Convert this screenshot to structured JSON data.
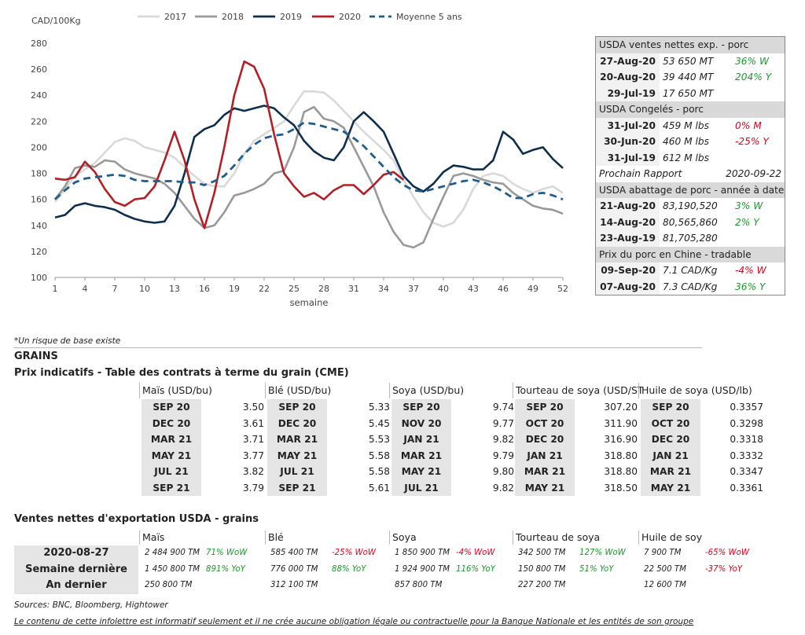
{
  "chart_data": {
    "type": "line",
    "ylabel": "CAD/100Kg",
    "xlabel": "semaine",
    "ylim": [
      100,
      280
    ],
    "xlim": [
      1,
      52
    ],
    "xticks": [
      1,
      4,
      7,
      10,
      13,
      16,
      19,
      22,
      25,
      28,
      31,
      34,
      37,
      40,
      43,
      46,
      49,
      52
    ],
    "yticks": [
      100,
      120,
      140,
      160,
      180,
      200,
      220,
      240,
      260,
      280
    ],
    "legend_position": "top",
    "series": [
      {
        "name": "2017",
        "color": "#d9d9d9",
        "dash": false,
        "x": [
          1,
          2,
          3,
          4,
          5,
          6,
          7,
          8,
          9,
          10,
          11,
          12,
          13,
          14,
          15,
          16,
          17,
          18,
          19,
          20,
          21,
          22,
          23,
          24,
          25,
          26,
          27,
          28,
          29,
          30,
          31,
          32,
          33,
          34,
          35,
          36,
          37,
          38,
          39,
          40,
          41,
          42,
          43,
          44,
          45,
          46,
          47,
          48,
          49,
          50,
          51,
          52
        ],
        "values": [
          158,
          168,
          178,
          183,
          188,
          196,
          204,
          207,
          205,
          200,
          198,
          196,
          192,
          185,
          178,
          172,
          170,
          170,
          180,
          195,
          205,
          210,
          215,
          220,
          232,
          243,
          243,
          242,
          236,
          228,
          220,
          212,
          205,
          198,
          190,
          175,
          162,
          150,
          142,
          139,
          142,
          152,
          168,
          178,
          180,
          178,
          172,
          168,
          165,
          168,
          170,
          165
        ]
      },
      {
        "name": "2018",
        "color": "#999999",
        "dash": false,
        "x": [
          1,
          2,
          3,
          4,
          5,
          6,
          7,
          8,
          9,
          10,
          11,
          12,
          13,
          14,
          15,
          16,
          17,
          18,
          19,
          20,
          21,
          22,
          23,
          24,
          25,
          26,
          27,
          28,
          29,
          30,
          31,
          32,
          33,
          34,
          35,
          36,
          37,
          38,
          39,
          40,
          41,
          42,
          43,
          44,
          45,
          46,
          47,
          48,
          49,
          50,
          51,
          52
        ],
        "values": [
          160,
          170,
          184,
          186,
          185,
          190,
          189,
          183,
          180,
          178,
          176,
          172,
          165,
          155,
          145,
          138,
          140,
          150,
          163,
          165,
          168,
          172,
          180,
          182,
          200,
          227,
          231,
          222,
          220,
          215,
          200,
          185,
          170,
          150,
          135,
          125,
          123,
          127,
          145,
          162,
          178,
          180,
          178,
          175,
          173,
          172,
          165,
          160,
          155,
          153,
          152,
          149
        ]
      },
      {
        "name": "2019",
        "color": "#0e2e4e",
        "dash": false,
        "x": [
          1,
          2,
          3,
          4,
          5,
          6,
          7,
          8,
          9,
          10,
          11,
          12,
          13,
          14,
          15,
          16,
          17,
          18,
          19,
          20,
          21,
          22,
          23,
          24,
          25,
          26,
          27,
          28,
          29,
          30,
          31,
          32,
          33,
          34,
          35,
          36,
          37,
          38,
          39,
          40,
          41,
          42,
          43,
          44,
          45,
          46,
          47,
          48,
          49,
          50,
          51,
          52
        ],
        "values": [
          146,
          148,
          155,
          157,
          155,
          154,
          152,
          148,
          145,
          143,
          142,
          143,
          155,
          180,
          208,
          214,
          217,
          225,
          230,
          228,
          230,
          232,
          230,
          223,
          217,
          205,
          197,
          192,
          190,
          200,
          220,
          227,
          220,
          212,
          195,
          178,
          170,
          166,
          172,
          181,
          186,
          185,
          183,
          183,
          190,
          212,
          206,
          195,
          198,
          200,
          191,
          184
        ]
      },
      {
        "name": "2020",
        "color": "#b22025",
        "dash": false,
        "x": [
          1,
          2,
          3,
          4,
          5,
          6,
          7,
          8,
          9,
          10,
          11,
          12,
          13,
          14,
          15,
          16,
          17,
          18,
          19,
          20,
          21,
          22,
          23,
          24,
          25,
          26,
          27,
          28,
          29,
          30,
          31,
          32,
          33,
          34,
          35,
          36
        ],
        "values": [
          176,
          175,
          177,
          189,
          181,
          168,
          158,
          155,
          160,
          161,
          170,
          190,
          212,
          190,
          160,
          138,
          165,
          200,
          240,
          266,
          262,
          245,
          210,
          180,
          170,
          162,
          165,
          160,
          167,
          171,
          171,
          164,
          171,
          179,
          181,
          175
        ]
      },
      {
        "name": "Moyenne 5 ans",
        "color": "#1f5d8e",
        "dash": true,
        "x": [
          1,
          2,
          3,
          4,
          5,
          6,
          7,
          8,
          9,
          10,
          11,
          12,
          13,
          14,
          15,
          16,
          17,
          18,
          19,
          20,
          21,
          22,
          23,
          24,
          25,
          26,
          27,
          28,
          29,
          30,
          31,
          32,
          33,
          34,
          35,
          36,
          37,
          38,
          39,
          40,
          41,
          42,
          43,
          44,
          45,
          46,
          47,
          48,
          49,
          50,
          51,
          52
        ],
        "values": [
          160,
          167,
          173,
          176,
          177,
          178,
          179,
          178,
          175,
          174,
          174,
          174,
          174,
          173,
          173,
          171,
          174,
          178,
          186,
          195,
          202,
          207,
          209,
          210,
          214,
          219,
          218,
          216,
          214,
          212,
          207,
          201,
          193,
          185,
          177,
          171,
          167,
          166,
          168,
          170,
          172,
          174,
          175,
          173,
          170,
          166,
          161,
          161,
          164,
          165,
          163,
          160
        ]
      }
    ]
  },
  "legend": [
    "2017",
    "2018",
    "2019",
    "2020",
    "Moyenne 5 ans"
  ],
  "side": {
    "s1_title": "USDA ventes nettes exp. - porc",
    "s1": [
      {
        "d": "27-Aug-20",
        "v": "53 650  MT",
        "c": "36% W",
        "t": "pos"
      },
      {
        "d": "20-Aug-20",
        "v": "39 440  MT",
        "c": "204% Y",
        "t": "pos"
      },
      {
        "d": "29-Jul-19",
        "v": "17 650  MT",
        "c": "",
        "t": ""
      }
    ],
    "s2_title": "USDA Congelés - porc",
    "s2": [
      {
        "d": "31-Jul-20",
        "v": "459 M lbs",
        "c": "0% M",
        "t": "neg"
      },
      {
        "d": "30-Jun-20",
        "v": "460 M lbs",
        "c": "-25% Y",
        "t": "neg"
      },
      {
        "d": "31-Jul-19",
        "v": "612 M lbs",
        "c": "",
        "t": ""
      }
    ],
    "next_label": "Prochain Rapport",
    "next_date": "2020-09-22",
    "s3_title": "USDA abattage de porc - année à date",
    "s3": [
      {
        "d": "21-Aug-20",
        "v": "83,190,520",
        "c": "3% W",
        "t": "pos"
      },
      {
        "d": "14-Aug-20",
        "v": "80,565,860",
        "c": "2% Y",
        "t": "pos"
      },
      {
        "d": "23-Aug-19",
        "v": "81,705,280",
        "c": "",
        "t": ""
      }
    ],
    "s4_title": "Prix du porc en Chine - tradable",
    "s4": [
      {
        "d": "09-Sep-20",
        "v": "7.1 CAD/Kg",
        "c": "-4% W",
        "t": "neg"
      },
      {
        "d": "07-Aug-20",
        "v": "7.3 CAD/Kg",
        "c": "36% Y",
        "t": "pos"
      }
    ]
  },
  "note": "*Un risque de base existe",
  "grains_title": "GRAINS",
  "cme_title": "Prix indicatifs - Table des contrats à terme du grain (CME)",
  "cme": [
    {
      "head": "Maïs (USD/bu)",
      "rows": [
        [
          "SEP 20",
          "3.50"
        ],
        [
          "DEC 20",
          "3.61"
        ],
        [
          "MAR 21",
          "3.71"
        ],
        [
          "MAY 21",
          "3.77"
        ],
        [
          "JUL 21",
          "3.82"
        ],
        [
          "SEP 21",
          "3.79"
        ]
      ]
    },
    {
      "head": "Blé (USD/bu)",
      "rows": [
        [
          "SEP 20",
          "5.33"
        ],
        [
          "DEC 20",
          "5.45"
        ],
        [
          "MAR 21",
          "5.53"
        ],
        [
          "MAY 21",
          "5.58"
        ],
        [
          "JUL 21",
          "5.58"
        ],
        [
          "SEP 21",
          "5.61"
        ]
      ]
    },
    {
      "head": "Soya (USD/bu)",
      "rows": [
        [
          "SEP 20",
          "9.74"
        ],
        [
          "NOV 20",
          "9.77"
        ],
        [
          "JAN 21",
          "9.82"
        ],
        [
          "MAR 21",
          "9.79"
        ],
        [
          "MAY 21",
          "9.80"
        ],
        [
          "JUL 21",
          "9.82"
        ]
      ]
    },
    {
      "head": "Tourteau de soya (USD/ST",
      "rows": [
        [
          "SEP 20",
          "307.20"
        ],
        [
          "OCT 20",
          "311.90"
        ],
        [
          "DEC 20",
          "316.90"
        ],
        [
          "JAN 21",
          "318.80"
        ],
        [
          "MAR 21",
          "318.80"
        ],
        [
          "MAY 21",
          "318.50"
        ]
      ]
    },
    {
      "head": "Huile de soya (USD/lb)",
      "rows": [
        [
          "SEP 20",
          "0.3357"
        ],
        [
          "OCT 20",
          "0.3298"
        ],
        [
          "DEC 20",
          "0.3318"
        ],
        [
          "JAN 21",
          "0.3332"
        ],
        [
          "MAR 21",
          "0.3347"
        ],
        [
          "MAY 21",
          "0.3361"
        ]
      ]
    }
  ],
  "exp_title": "Ventes nettes d'exportation USDA - grains",
  "exp_labels": [
    "2020-08-27",
    "Semaine dernière",
    "An dernier"
  ],
  "exp": [
    {
      "head": "Maïs",
      "rows": [
        [
          "2 484 900 TM",
          "71% WoW",
          "pos"
        ],
        [
          "1 450 800 TM",
          "891% YoY",
          "pos"
        ],
        [
          "250 800 TM",
          "",
          ""
        ]
      ]
    },
    {
      "head": "Blé",
      "rows": [
        [
          "585 400 TM",
          "-25% WoW",
          "neg"
        ],
        [
          "776 000 TM",
          "88% YoY",
          "pos"
        ],
        [
          "312 100 TM",
          "",
          ""
        ]
      ]
    },
    {
      "head": "Soya",
      "rows": [
        [
          "1 850 900 TM",
          "-4% WoW",
          "neg"
        ],
        [
          "1 924 900 TM",
          "116% YoY",
          "pos"
        ],
        [
          "857 800 TM",
          "",
          ""
        ]
      ]
    },
    {
      "head": "Tourteau de soya",
      "rows": [
        [
          "342 500 TM",
          "127% WoW",
          "pos"
        ],
        [
          "150 800 TM",
          "51% YoY",
          "pos"
        ],
        [
          "227 200 TM",
          "",
          ""
        ]
      ]
    },
    {
      "head": "Huile de soy",
      "rows": [
        [
          "7 900 TM",
          "-65% WoW",
          "neg"
        ],
        [
          "22 500 TM",
          "-37% YoY",
          "neg"
        ],
        [
          "12 600 TM",
          "",
          ""
        ]
      ]
    }
  ],
  "sources": "Sources: BNC, Bloomberg, Hightower",
  "disclaimer": "Le contenu de cette infolettre est informatif seulement et il ne crée aucune obligation légale ou contractuelle pour la Banque Nationale et les entités de son groupe"
}
